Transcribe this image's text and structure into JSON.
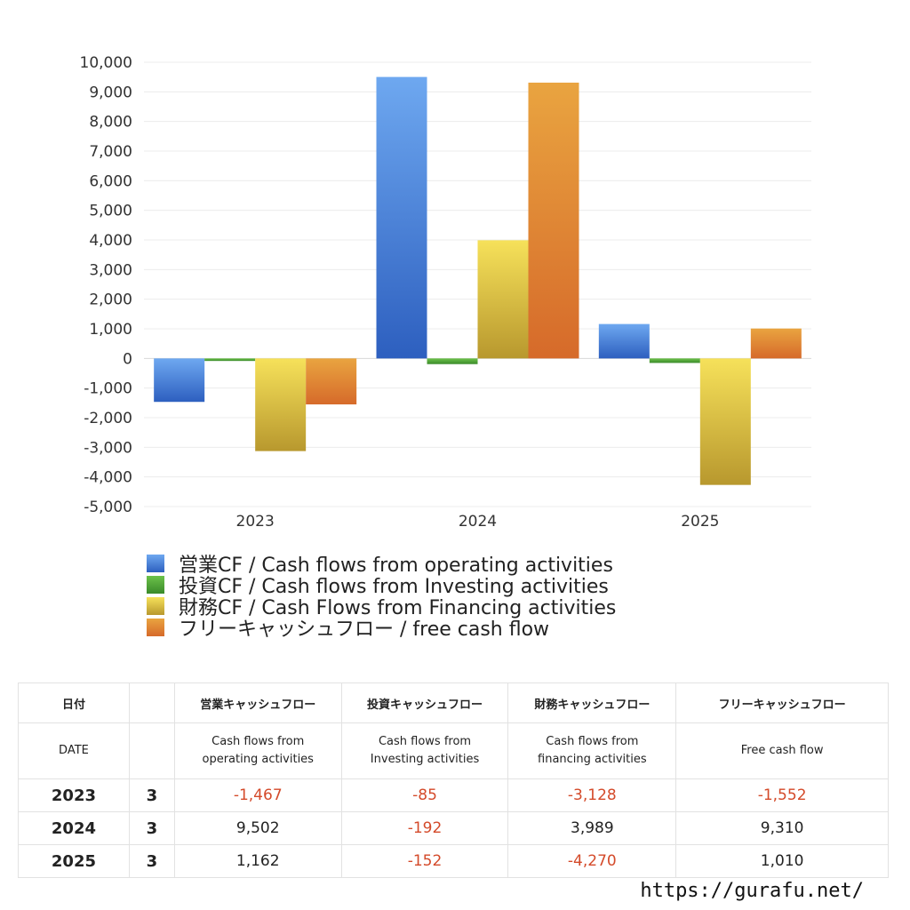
{
  "chart_data": {
    "type": "bar",
    "categories": [
      "2023",
      "2024",
      "2025"
    ],
    "series": [
      {
        "name": "営業CF / Cash flows from operating activities",
        "values": [
          -1467,
          9502,
          1162
        ],
        "color_top": "#6ea8f0",
        "color_bottom": "#2d5fbf"
      },
      {
        "name": "投資CF / Cash flows from Investing activities",
        "values": [
          -85,
          -192,
          -152
        ],
        "color_top": "#6cc24a",
        "color_bottom": "#3a8a2a"
      },
      {
        "name": "財務CF / Cash Flows from Financing activities",
        "values": [
          -3128,
          3989,
          -4270
        ],
        "color_top": "#f6e15a",
        "color_bottom": "#b8982e"
      },
      {
        "name": "フリーキャッシュフロー / free cash flow",
        "values": [
          -1552,
          9310,
          1010
        ],
        "color_top": "#e9a440",
        "color_bottom": "#d66a2a"
      }
    ],
    "ylim": [
      -5000,
      10000
    ],
    "yticks": [
      10000,
      9000,
      8000,
      7000,
      6000,
      5000,
      4000,
      3000,
      2000,
      1000,
      0,
      -1000,
      -2000,
      -3000,
      -4000,
      -5000
    ],
    "ytick_labels": [
      "10,000",
      "9,000",
      "8,000",
      "7,000",
      "6,000",
      "5,000",
      "4,000",
      "3,000",
      "2,000",
      "1,000",
      "0",
      "-1,000",
      "-2,000",
      "-3,000",
      "-4,000",
      "-5,000"
    ],
    "grid": true,
    "legend_position": "bottom"
  },
  "table": {
    "header1": {
      "date": "日付",
      "op": "営業キャッシュフロー",
      "inv": "投資キャッシュフロー",
      "fin": "財務キャッシュフロー",
      "free": "フリーキャッシュフロー"
    },
    "header2": {
      "date": "DATE",
      "op": [
        "Cash flows from",
        "operating activities"
      ],
      "inv": [
        "Cash flows from",
        "Investing activities"
      ],
      "fin": [
        "Cash flows from",
        "financing activities"
      ],
      "free": "Free cash flow"
    },
    "rows": [
      {
        "year": "2023",
        "month": "3",
        "op": "-1,467",
        "inv": "-85",
        "fin": "-3,128",
        "free": "-1,552"
      },
      {
        "year": "2024",
        "month": "3",
        "op": "9,502",
        "inv": "-192",
        "fin": "3,989",
        "free": "9,310"
      },
      {
        "year": "2025",
        "month": "3",
        "op": "1,162",
        "inv": "-152",
        "fin": "-4,270",
        "free": "1,010"
      }
    ]
  },
  "footer_url": "https://gurafu.net/"
}
